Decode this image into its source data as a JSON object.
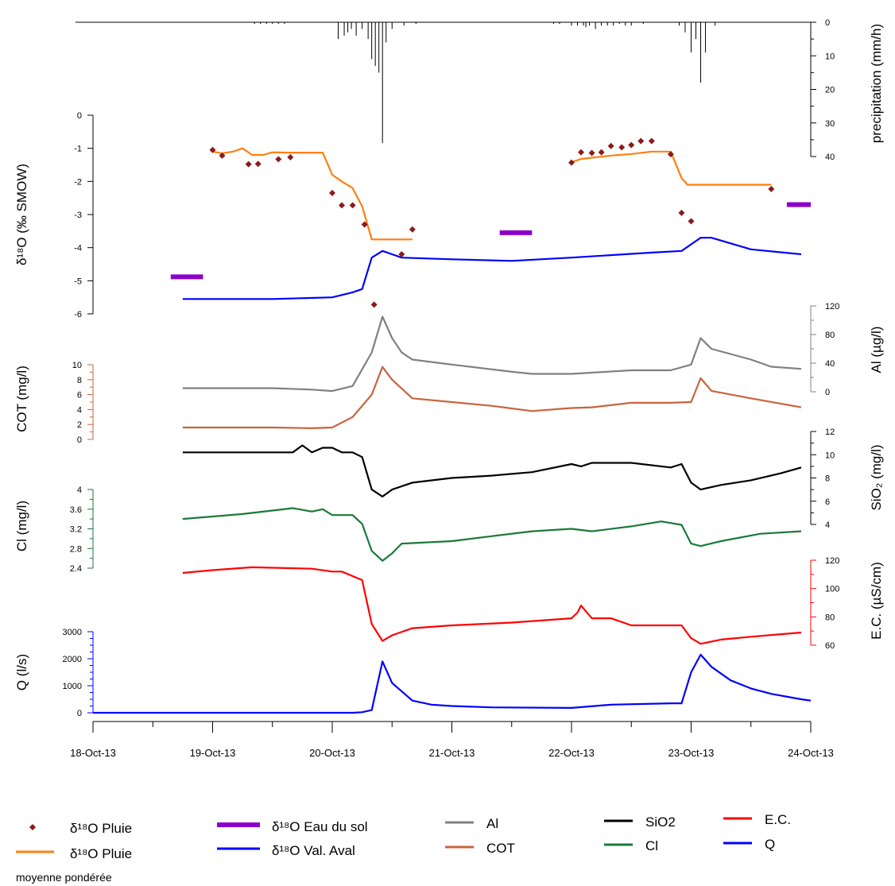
{
  "chart_data": {
    "type": "line",
    "x_axis": {
      "tick_labels": [
        "18-Oct-13",
        "19-Oct-13",
        "20-Oct-13",
        "21-Oct-13",
        "22-Oct-13",
        "23-Oct-13",
        "24-Oct-13"
      ],
      "range_days": [
        0,
        6
      ]
    },
    "precipitation": {
      "title": "precipitation (mm/h)",
      "ticks": [
        "0",
        "10",
        "20",
        "30",
        "40"
      ],
      "range": [
        0,
        40
      ],
      "points": [
        [
          2.05,
          5
        ],
        [
          2.1,
          4
        ],
        [
          2.13,
          3
        ],
        [
          2.16,
          2
        ],
        [
          2.2,
          4
        ],
        [
          2.25,
          2
        ],
        [
          2.3,
          5
        ],
        [
          2.33,
          11
        ],
        [
          2.36,
          13
        ],
        [
          2.39,
          15
        ],
        [
          2.42,
          36
        ],
        [
          2.45,
          6
        ],
        [
          2.5,
          2
        ],
        [
          2.6,
          1
        ],
        [
          2.7,
          0.5
        ],
        [
          1.35,
          0.5
        ],
        [
          1.4,
          0.5
        ],
        [
          1.45,
          0.5
        ],
        [
          1.5,
          0.5
        ],
        [
          1.55,
          0.5
        ],
        [
          1.6,
          0.5
        ],
        [
          3.85,
          0.5
        ],
        [
          3.9,
          0.5
        ],
        [
          4.0,
          1
        ],
        [
          4.05,
          1
        ],
        [
          4.1,
          1
        ],
        [
          4.12,
          1.5
        ],
        [
          4.15,
          1
        ],
        [
          4.2,
          2
        ],
        [
          4.25,
          1
        ],
        [
          4.3,
          1
        ],
        [
          4.35,
          1
        ],
        [
          4.4,
          0.5
        ],
        [
          4.45,
          1
        ],
        [
          4.5,
          1
        ],
        [
          4.6,
          0.5
        ],
        [
          4.9,
          1
        ],
        [
          4.95,
          3
        ],
        [
          5.0,
          9
        ],
        [
          5.04,
          5
        ],
        [
          5.08,
          18
        ],
        [
          5.12,
          9
        ],
        [
          5.2,
          1
        ]
      ]
    },
    "d18O": {
      "title": "δ¹⁸O (‰ SMOW)",
      "ticks": [
        "0",
        "-1",
        "-2",
        "-3",
        "-4",
        "-5",
        "-6"
      ],
      "range": [
        -6,
        0
      ],
      "pluie_points": [
        [
          1.0,
          -1.05
        ],
        [
          1.08,
          -1.22
        ],
        [
          1.3,
          -1.48
        ],
        [
          1.38,
          -1.47
        ],
        [
          1.55,
          -1.33
        ],
        [
          1.65,
          -1.27
        ],
        [
          2.0,
          -2.35
        ],
        [
          2.08,
          -2.72
        ],
        [
          2.17,
          -2.72
        ],
        [
          2.27,
          -3.3
        ],
        [
          2.35,
          -5.72
        ],
        [
          2.58,
          -4.2
        ],
        [
          2.67,
          -3.45
        ],
        [
          4.0,
          -1.43
        ],
        [
          4.08,
          -1.12
        ],
        [
          4.17,
          -1.14
        ],
        [
          4.25,
          -1.12
        ],
        [
          4.33,
          -0.93
        ],
        [
          4.42,
          -0.97
        ],
        [
          4.5,
          -0.9
        ],
        [
          4.58,
          -0.78
        ],
        [
          4.67,
          -0.78
        ],
        [
          4.83,
          -1.18
        ],
        [
          4.92,
          -2.95
        ],
        [
          5.0,
          -3.2
        ],
        [
          5.67,
          -2.23
        ]
      ],
      "pluie_moyenne": [
        [
          1.0,
          -1.1
        ],
        [
          1.08,
          -1.15
        ],
        [
          1.17,
          -1.1
        ],
        [
          1.25,
          -1.0
        ],
        [
          1.33,
          -1.2
        ],
        [
          1.42,
          -1.2
        ],
        [
          1.5,
          -1.12
        ],
        [
          1.67,
          -1.13
        ],
        [
          1.92,
          -1.13
        ],
        [
          2.0,
          -1.8
        ],
        [
          2.08,
          -2.0
        ],
        [
          2.17,
          -2.2
        ],
        [
          2.25,
          -2.75
        ],
        [
          2.33,
          -3.75
        ],
        [
          2.67,
          -3.75
        ]
      ],
      "pluie_moyenne_2": [
        [
          4.0,
          -1.42
        ],
        [
          4.08,
          -1.32
        ],
        [
          4.33,
          -1.22
        ],
        [
          4.5,
          -1.17
        ],
        [
          4.67,
          -1.1
        ],
        [
          4.83,
          -1.1
        ],
        [
          4.92,
          -1.9
        ],
        [
          4.97,
          -2.1
        ],
        [
          5.67,
          -2.1
        ]
      ],
      "eau_du_sol": [
        {
          "x0": 0.65,
          "x1": 0.92,
          "y": -4.88
        },
        {
          "x0": 3.4,
          "x1": 3.67,
          "y": -3.55
        },
        {
          "x0": 5.8,
          "x1": 6.0,
          "y": -2.7
        }
      ],
      "val_aval": [
        [
          0.75,
          -5.55
        ],
        [
          1.5,
          -5.55
        ],
        [
          2.0,
          -5.5
        ],
        [
          2.17,
          -5.35
        ],
        [
          2.25,
          -5.25
        ],
        [
          2.33,
          -4.3
        ],
        [
          2.42,
          -4.1
        ],
        [
          2.5,
          -4.2
        ],
        [
          2.58,
          -4.3
        ],
        [
          3.0,
          -4.35
        ],
        [
          3.5,
          -4.4
        ],
        [
          4.0,
          -4.3
        ],
        [
          4.67,
          -4.15
        ],
        [
          4.92,
          -4.1
        ],
        [
          5.0,
          -3.9
        ],
        [
          5.08,
          -3.7
        ],
        [
          5.17,
          -3.7
        ],
        [
          5.5,
          -4.05
        ],
        [
          5.92,
          -4.2
        ]
      ]
    },
    "Al": {
      "title": "Al (µg/l)",
      "ticks": [
        "0",
        "40",
        "80",
        "120"
      ],
      "range": [
        0,
        120
      ],
      "points": [
        [
          0.75,
          5
        ],
        [
          1.5,
          5
        ],
        [
          1.83,
          3
        ],
        [
          2.0,
          1
        ],
        [
          2.17,
          8
        ],
        [
          2.33,
          55
        ],
        [
          2.42,
          105
        ],
        [
          2.5,
          75
        ],
        [
          2.58,
          55
        ],
        [
          2.67,
          45
        ],
        [
          3.0,
          38
        ],
        [
          3.5,
          28
        ],
        [
          3.67,
          25
        ],
        [
          4.0,
          25
        ],
        [
          4.5,
          30
        ],
        [
          4.83,
          30
        ],
        [
          5.0,
          38
        ],
        [
          5.08,
          75
        ],
        [
          5.17,
          60
        ],
        [
          5.5,
          45
        ],
        [
          5.67,
          35
        ],
        [
          5.92,
          32
        ]
      ]
    },
    "COT": {
      "title": "COT (mg/l)",
      "ticks": [
        "0",
        "2",
        "4",
        "6",
        "8",
        "10"
      ],
      "range": [
        0,
        10
      ],
      "points": [
        [
          0.75,
          1.6
        ],
        [
          1.5,
          1.6
        ],
        [
          1.83,
          1.5
        ],
        [
          2.0,
          1.6
        ],
        [
          2.17,
          3
        ],
        [
          2.33,
          6
        ],
        [
          2.42,
          9.7
        ],
        [
          2.5,
          8
        ],
        [
          2.67,
          5.5
        ],
        [
          3.0,
          5.0
        ],
        [
          3.33,
          4.5
        ],
        [
          3.67,
          3.8
        ],
        [
          4.0,
          4.2
        ],
        [
          4.17,
          4.3
        ],
        [
          4.5,
          4.9
        ],
        [
          4.83,
          4.9
        ],
        [
          5.0,
          5.0
        ],
        [
          5.08,
          8.2
        ],
        [
          5.17,
          6.5
        ],
        [
          5.5,
          5.5
        ],
        [
          5.92,
          4.3
        ]
      ]
    },
    "SiO2": {
      "title": "SiO₂ (mg/l)",
      "ticks": [
        "4",
        "6",
        "8",
        "10",
        "12"
      ],
      "range": [
        4,
        12
      ],
      "points": [
        [
          0.75,
          10.2
        ],
        [
          1.17,
          10.2
        ],
        [
          1.67,
          10.2
        ],
        [
          1.75,
          10.8
        ],
        [
          1.83,
          10.2
        ],
        [
          1.92,
          10.6
        ],
        [
          2.0,
          10.6
        ],
        [
          2.08,
          10.2
        ],
        [
          2.17,
          10.2
        ],
        [
          2.25,
          9.8
        ],
        [
          2.33,
          7.0
        ],
        [
          2.42,
          6.4
        ],
        [
          2.5,
          7.0
        ],
        [
          2.67,
          7.6
        ],
        [
          3.0,
          8.0
        ],
        [
          3.33,
          8.2
        ],
        [
          3.67,
          8.5
        ],
        [
          4.0,
          9.2
        ],
        [
          4.08,
          9.0
        ],
        [
          4.17,
          9.3
        ],
        [
          4.5,
          9.3
        ],
        [
          4.83,
          8.9
        ],
        [
          4.92,
          9.2
        ],
        [
          5.0,
          7.6
        ],
        [
          5.08,
          7.0
        ],
        [
          5.25,
          7.4
        ],
        [
          5.5,
          7.8
        ],
        [
          5.75,
          8.4
        ],
        [
          5.92,
          8.9
        ]
      ]
    },
    "Cl": {
      "title": "Cl (mg/l)",
      "ticks": [
        "2.4",
        "2.8",
        "3.2",
        "3.6",
        "4"
      ],
      "range": [
        2.4,
        4
      ],
      "points": [
        [
          0.75,
          3.4
        ],
        [
          1.25,
          3.5
        ],
        [
          1.67,
          3.62
        ],
        [
          1.83,
          3.55
        ],
        [
          1.92,
          3.6
        ],
        [
          2.0,
          3.48
        ],
        [
          2.17,
          3.48
        ],
        [
          2.25,
          3.3
        ],
        [
          2.33,
          2.75
        ],
        [
          2.42,
          2.55
        ],
        [
          2.5,
          2.7
        ],
        [
          2.58,
          2.9
        ],
        [
          3.0,
          2.95
        ],
        [
          3.33,
          3.05
        ],
        [
          3.67,
          3.15
        ],
        [
          4.0,
          3.2
        ],
        [
          4.17,
          3.15
        ],
        [
          4.5,
          3.25
        ],
        [
          4.75,
          3.35
        ],
        [
          4.92,
          3.28
        ],
        [
          5.0,
          2.9
        ],
        [
          5.08,
          2.85
        ],
        [
          5.25,
          2.95
        ],
        [
          5.58,
          3.1
        ],
        [
          5.92,
          3.15
        ]
      ]
    },
    "EC": {
      "title": "E.C. (µS/cm)",
      "ticks": [
        "60",
        "80",
        "100",
        "120"
      ],
      "range": [
        60,
        120
      ],
      "points": [
        [
          0.75,
          111
        ],
        [
          1.0,
          113
        ],
        [
          1.33,
          115
        ],
        [
          1.83,
          114
        ],
        [
          2.0,
          112
        ],
        [
          2.08,
          112
        ],
        [
          2.25,
          106
        ],
        [
          2.33,
          75
        ],
        [
          2.42,
          63
        ],
        [
          2.5,
          67
        ],
        [
          2.67,
          72
        ],
        [
          3.0,
          74
        ],
        [
          3.5,
          76
        ],
        [
          4.0,
          79
        ],
        [
          4.05,
          83
        ],
        [
          4.08,
          88
        ],
        [
          4.17,
          79
        ],
        [
          4.33,
          79
        ],
        [
          4.5,
          74
        ],
        [
          4.92,
          74
        ],
        [
          5.0,
          65
        ],
        [
          5.08,
          61
        ],
        [
          5.25,
          64
        ],
        [
          5.5,
          66
        ],
        [
          5.92,
          69
        ]
      ]
    },
    "Q": {
      "title": "Q (l/s)",
      "ticks": [
        "0",
        "1000",
        "2000",
        "3000"
      ],
      "range": [
        0,
        3000
      ],
      "points": [
        [
          0.0,
          0
        ],
        [
          2.17,
          0
        ],
        [
          2.25,
          20
        ],
        [
          2.33,
          100
        ],
        [
          2.42,
          1900
        ],
        [
          2.5,
          1100
        ],
        [
          2.67,
          450
        ],
        [
          2.83,
          300
        ],
        [
          3.0,
          250
        ],
        [
          3.33,
          200
        ],
        [
          4.0,
          180
        ],
        [
          4.33,
          300
        ],
        [
          4.83,
          350
        ],
        [
          4.92,
          350
        ],
        [
          5.0,
          1500
        ],
        [
          5.08,
          2150
        ],
        [
          5.17,
          1700
        ],
        [
          5.33,
          1200
        ],
        [
          5.5,
          900
        ],
        [
          5.67,
          700
        ],
        [
          5.92,
          500
        ],
        [
          6.0,
          450
        ]
      ]
    },
    "legend": [
      {
        "label": "δ¹⁸O Pluie",
        "kind": "marker",
        "color": "#8b1a1a"
      },
      {
        "label": "δ¹⁸O Pluie",
        "kind": "line",
        "color": "#ff7f0e"
      },
      {
        "label": "moyenne pondérée",
        "kind": "note"
      },
      {
        "label": "δ¹⁸O Eau du sol",
        "kind": "thick",
        "color": "#8b00c9"
      },
      {
        "label": "δ¹⁸O Val. Aval",
        "kind": "line",
        "color": "#0000ff"
      },
      {
        "label": "Al",
        "kind": "line",
        "color": "#808080"
      },
      {
        "label": "COT",
        "kind": "line",
        "color": "#c8643c"
      },
      {
        "label": "SiO2",
        "kind": "line",
        "color": "#000000"
      },
      {
        "label": "Cl",
        "kind": "line",
        "color": "#1a7a3a"
      },
      {
        "label": "E.C.",
        "kind": "line",
        "color": "#ff0000"
      },
      {
        "label": "Q",
        "kind": "line",
        "color": "#0000ff"
      }
    ]
  }
}
